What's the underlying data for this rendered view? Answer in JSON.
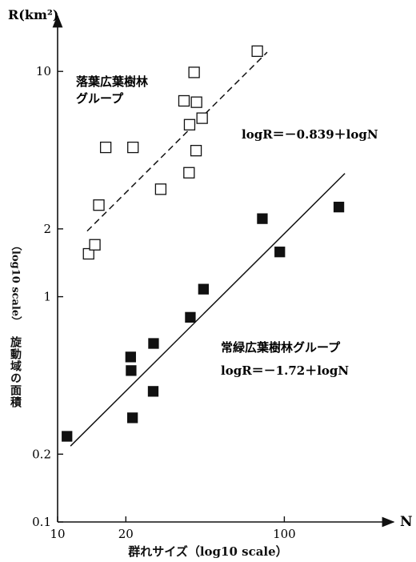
{
  "chart_data": {
    "type": "scatter",
    "title": "",
    "xlabel": "群れサイズ（log10 scale）",
    "ylabel": "旋動域の面積",
    "ylabel_unit": "（log10 scale）",
    "y_axis_title": "R(km²)",
    "x_axis_title": "N",
    "x_scale": "log",
    "y_scale": "log",
    "xlim": [
      10,
      250
    ],
    "ylim": [
      0.1,
      15
    ],
    "xticks": [
      10,
      20,
      100
    ],
    "xtick_labels": [
      "10",
      "20",
      "100"
    ],
    "yticks": [
      0.1,
      0.2,
      1,
      2,
      10
    ],
    "ytick_labels": [
      "0.1",
      "0.2",
      "1",
      "2",
      "10"
    ],
    "grid": false,
    "series": [
      {
        "name": "落葉広葉樹林グループ",
        "name_lines": [
          "落葉広葉樹林",
          "グループ"
        ],
        "marker": "open-square",
        "equation": "logR＝－0.839＋logN",
        "fit": {
          "intercept": -0.839,
          "slope": 1,
          "x_range": [
            13.5,
            84
          ],
          "line_style": "dashed"
        },
        "points": [
          {
            "x": 13.7,
            "y": 1.55
          },
          {
            "x": 14.6,
            "y": 1.7
          },
          {
            "x": 15.2,
            "y": 2.55
          },
          {
            "x": 16.3,
            "y": 4.6
          },
          {
            "x": 21.5,
            "y": 4.6
          },
          {
            "x": 28.5,
            "y": 3.0
          },
          {
            "x": 36.1,
            "y": 7.4
          },
          {
            "x": 38.0,
            "y": 3.55
          },
          {
            "x": 38.2,
            "y": 5.8
          },
          {
            "x": 40.0,
            "y": 9.9
          },
          {
            "x": 41.0,
            "y": 7.3
          },
          {
            "x": 40.8,
            "y": 4.45
          },
          {
            "x": 43.4,
            "y": 6.2
          },
          {
            "x": 76.0,
            "y": 12.3
          }
        ]
      },
      {
        "name": "常緑広葉樹林グループ",
        "marker": "filled-square",
        "equation": "logR＝－1.72＋logN",
        "fit": {
          "intercept": -1.72,
          "slope": 1,
          "x_range": [
            11.4,
            185
          ],
          "line_style": "solid"
        },
        "points": [
          {
            "x": 11.0,
            "y": 0.24
          },
          {
            "x": 21.0,
            "y": 0.54
          },
          {
            "x": 21.1,
            "y": 0.47
          },
          {
            "x": 21.4,
            "y": 0.29
          },
          {
            "x": 26.5,
            "y": 0.62
          },
          {
            "x": 26.4,
            "y": 0.38
          },
          {
            "x": 38.5,
            "y": 0.81
          },
          {
            "x": 44.0,
            "y": 1.08
          },
          {
            "x": 80.0,
            "y": 2.22
          },
          {
            "x": 95.5,
            "y": 1.58
          },
          {
            "x": 174.0,
            "y": 2.5
          }
        ]
      }
    ]
  }
}
